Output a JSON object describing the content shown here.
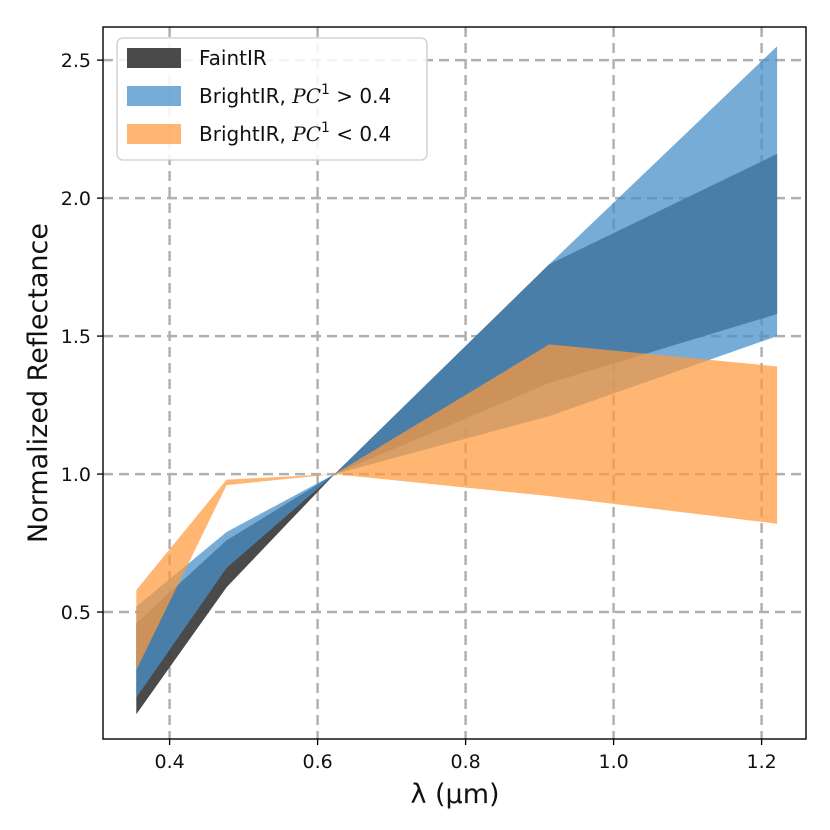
{
  "chart_data": {
    "type": "area",
    "xlabel": "λ (μm)",
    "ylabel": "Normalized Reflectance",
    "xlim": [
      0.31,
      1.26
    ],
    "ylim": [
      0.04,
      2.62
    ],
    "xticks": [
      0.4,
      0.6,
      0.8,
      1.0,
      1.2
    ],
    "xtick_labels": [
      "0.4",
      "0.6",
      "0.8",
      "1.0",
      "1.2"
    ],
    "yticks": [
      0.5,
      1.0,
      1.5,
      2.0,
      2.5
    ],
    "ytick_labels": [
      "0.5",
      "1.0",
      "1.5",
      "2.0",
      "2.5"
    ],
    "grid": true,
    "legend_position": "top-left",
    "series": [
      {
        "name": "FaintIR",
        "legend_main": "FaintIR",
        "color": "#404040",
        "opacity": 0.95,
        "x": [
          0.355,
          0.477,
          0.623,
          0.913,
          1.221
        ],
        "lower": [
          0.13,
          0.59,
          1.0,
          1.33,
          1.58
        ],
        "upper": [
          0.46,
          0.76,
          1.0,
          1.76,
          2.16
        ]
      },
      {
        "name": "BrightIR, PC^1 > 0.4",
        "legend_main": "BrightIR, ",
        "legend_var": "PC",
        "legend_sup": "1",
        "legend_rel": " > 0.4",
        "color": "#4a90c8",
        "opacity": 0.75,
        "x": [
          0.355,
          0.477,
          0.623,
          0.913,
          1.221
        ],
        "lower": [
          0.19,
          0.66,
          1.0,
          1.21,
          1.5
        ],
        "upper": [
          0.52,
          0.79,
          1.0,
          1.76,
          2.55
        ]
      },
      {
        "name": "BrightIR, PC^1 < 0.4",
        "legend_main": "BrightIR, ",
        "legend_var": "PC",
        "legend_sup": "1",
        "legend_rel": " < 0.4",
        "color": "#ff9a3c",
        "opacity": 0.72,
        "x": [
          0.355,
          0.477,
          0.623,
          0.913,
          1.221
        ],
        "lower": [
          0.29,
          0.96,
          1.0,
          0.92,
          0.82
        ],
        "upper": [
          0.58,
          0.98,
          1.0,
          1.47,
          1.39
        ]
      }
    ]
  }
}
